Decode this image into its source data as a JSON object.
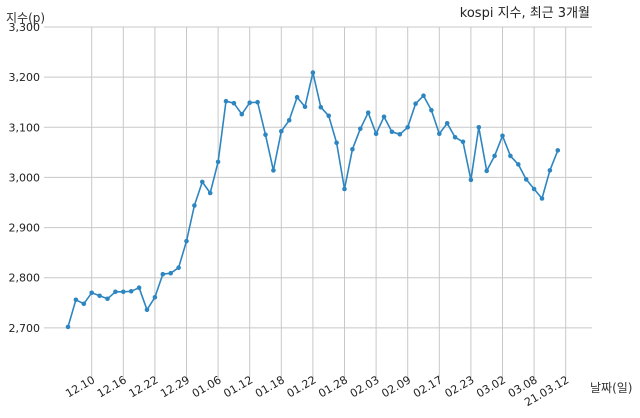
{
  "chart_data": {
    "type": "line",
    "title": "kospi 지수, 최근 3개월",
    "xlabel": "날짜(일)",
    "ylabel": "지수(p)",
    "ylim": [
      2600,
      3300
    ],
    "yticks": [
      2700,
      2800,
      2900,
      3000,
      3100,
      3200,
      3300
    ],
    "ytick_labels": [
      "2,700",
      "2,800",
      "2,900",
      "3,000",
      "3,100",
      "3,200",
      "3,300"
    ],
    "xtick_labels": [
      "12.10",
      "12.16",
      "12.22",
      "12.29",
      "01.06",
      "01.12",
      "01.18",
      "01.22",
      "01.28",
      "02.03",
      "02.09",
      "02.17",
      "02.23",
      "03.02",
      "03.08",
      "21.03.12"
    ],
    "xtick_index": [
      3,
      7,
      11,
      15,
      19,
      23,
      27,
      31,
      35,
      39,
      43,
      47,
      51,
      55,
      59,
      63
    ],
    "grid": true,
    "line_color": "#2e86c1",
    "series": [
      {
        "values": [
          2702,
          2756,
          2748,
          2770,
          2764,
          2758,
          2772,
          2772,
          2773,
          2780,
          2736,
          2761,
          2807,
          2809,
          2820,
          2873,
          2944,
          2991,
          2969,
          3031,
          3152,
          3148,
          3126,
          3149,
          3150,
          3085,
          3014,
          3092,
          3114,
          3160,
          3141,
          3209,
          3140,
          3123,
          3069,
          2977,
          3056,
          3097,
          3129,
          3087,
          3121,
          3091,
          3086,
          3100,
          3147,
          3163,
          3134,
          3087,
          3108,
          3080,
          3071,
          2995,
          3100,
          3013,
          3043,
          3083,
          3043,
          3026,
          2996,
          2977,
          2958,
          3014,
          3054
        ]
      }
    ]
  }
}
